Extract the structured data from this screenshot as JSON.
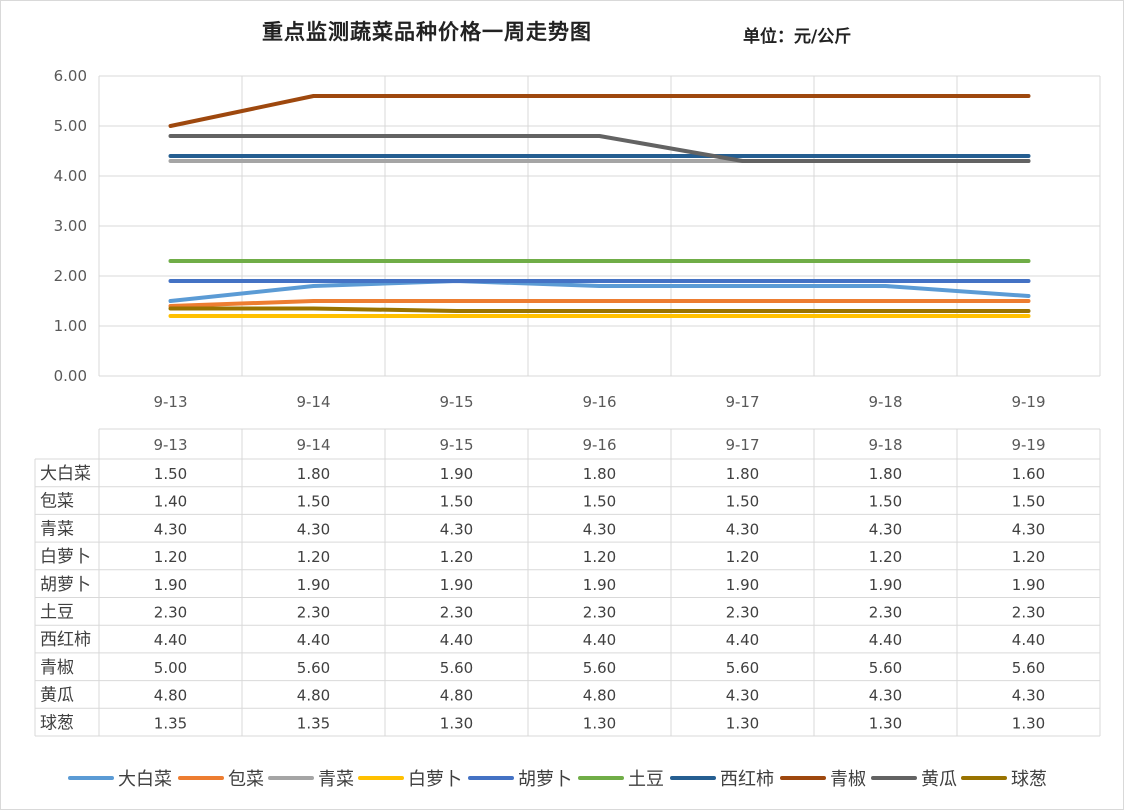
{
  "chart_data": {
    "type": "line",
    "title": "重点监测蔬菜品种价格一周走势图",
    "unit": "单位：元/公斤",
    "categories": [
      "9-13",
      "9-14",
      "9-15",
      "9-16",
      "9-17",
      "9-18",
      "9-19"
    ],
    "ylim": [
      0,
      6
    ],
    "yticks": [
      "0.00",
      "1.00",
      "2.00",
      "3.00",
      "4.00",
      "5.00",
      "6.00"
    ],
    "grid": true,
    "legend_position": "bottom",
    "has_data_table": true,
    "series": [
      {
        "name": "大白菜",
        "color": "#5b9bd5",
        "values": [
          1.5,
          1.8,
          1.9,
          1.8,
          1.8,
          1.8,
          1.6
        ],
        "labels": [
          "1.50",
          "1.80",
          "1.90",
          "1.80",
          "1.80",
          "1.80",
          "1.60"
        ]
      },
      {
        "name": "包菜",
        "color": "#ed7d31",
        "values": [
          1.4,
          1.5,
          1.5,
          1.5,
          1.5,
          1.5,
          1.5
        ],
        "labels": [
          "1.40",
          "1.50",
          "1.50",
          "1.50",
          "1.50",
          "1.50",
          "1.50"
        ]
      },
      {
        "name": "青菜",
        "color": "#a5a5a5",
        "values": [
          4.3,
          4.3,
          4.3,
          4.3,
          4.3,
          4.3,
          4.3
        ],
        "labels": [
          "4.30",
          "4.30",
          "4.30",
          "4.30",
          "4.30",
          "4.30",
          "4.30"
        ]
      },
      {
        "name": "白萝卜",
        "color": "#ffc000",
        "values": [
          1.2,
          1.2,
          1.2,
          1.2,
          1.2,
          1.2,
          1.2
        ],
        "labels": [
          "1.20",
          "1.20",
          "1.20",
          "1.20",
          "1.20",
          "1.20",
          "1.20"
        ]
      },
      {
        "name": "胡萝卜",
        "color": "#4472c4",
        "values": [
          1.9,
          1.9,
          1.9,
          1.9,
          1.9,
          1.9,
          1.9
        ],
        "labels": [
          "1.90",
          "1.90",
          "1.90",
          "1.90",
          "1.90",
          "1.90",
          "1.90"
        ]
      },
      {
        "name": "土豆",
        "color": "#70ad47",
        "values": [
          2.3,
          2.3,
          2.3,
          2.3,
          2.3,
          2.3,
          2.3
        ],
        "labels": [
          "2.30",
          "2.30",
          "2.30",
          "2.30",
          "2.30",
          "2.30",
          "2.30"
        ]
      },
      {
        "name": "西红柿",
        "color": "#255e91",
        "values": [
          4.4,
          4.4,
          4.4,
          4.4,
          4.4,
          4.4,
          4.4
        ],
        "labels": [
          "4.40",
          "4.40",
          "4.40",
          "4.40",
          "4.40",
          "4.40",
          "4.40"
        ]
      },
      {
        "name": "青椒",
        "color": "#9e480e",
        "values": [
          5.0,
          5.6,
          5.6,
          5.6,
          5.6,
          5.6,
          5.6
        ],
        "labels": [
          "5.00",
          "5.60",
          "5.60",
          "5.60",
          "5.60",
          "5.60",
          "5.60"
        ]
      },
      {
        "name": "黄瓜",
        "color": "#636363",
        "values": [
          4.8,
          4.8,
          4.8,
          4.8,
          4.3,
          4.3,
          4.3
        ],
        "labels": [
          "4.80",
          "4.80",
          "4.80",
          "4.80",
          "4.30",
          "4.30",
          "4.30"
        ]
      },
      {
        "name": "球葱",
        "color": "#997300",
        "values": [
          1.35,
          1.35,
          1.3,
          1.3,
          1.3,
          1.3,
          1.3
        ],
        "labels": [
          "1.35",
          "1.35",
          "1.30",
          "1.30",
          "1.30",
          "1.30",
          "1.30"
        ]
      }
    ]
  }
}
